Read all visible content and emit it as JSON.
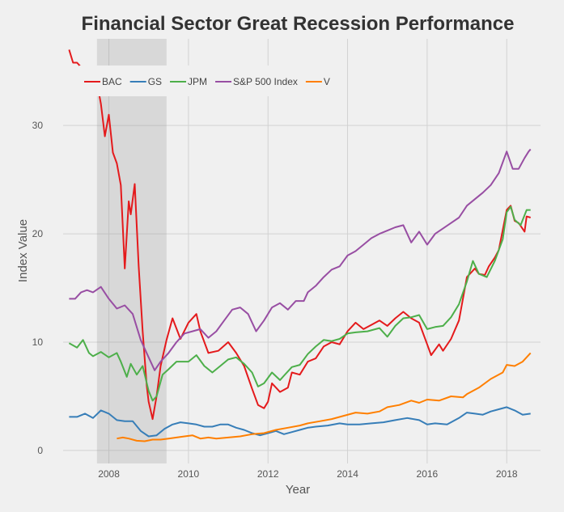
{
  "chart_data": {
    "type": "line",
    "title": "Financial Sector Great Recession Performance",
    "xlabel": "Year",
    "ylabel": "Index Value",
    "xlim": [
      2006.85,
      2018.85
    ],
    "ylim": [
      -1.2,
      38
    ],
    "x_ticks": [
      2008,
      2010,
      2012,
      2014,
      2016,
      2018
    ],
    "y_ticks": [
      0,
      10,
      20,
      30
    ],
    "grid": true,
    "legend_position": "top-left",
    "recession_band": [
      2007.7,
      2009.45
    ],
    "series": [
      {
        "name": "BAC",
        "color": "#e41a1c",
        "points": [
          [
            2007.0,
            37.0
          ],
          [
            2007.1,
            35.8
          ],
          [
            2007.2,
            35.8
          ],
          [
            2007.4,
            35.0
          ],
          [
            2007.5,
            33.3
          ],
          [
            2007.6,
            34.5
          ],
          [
            2007.7,
            34.0
          ],
          [
            2007.8,
            32.0
          ],
          [
            2007.9,
            29.0
          ],
          [
            2008.0,
            31.0
          ],
          [
            2008.1,
            27.5
          ],
          [
            2008.2,
            26.5
          ],
          [
            2008.3,
            24.5
          ],
          [
            2008.4,
            16.8
          ],
          [
            2008.5,
            23.0
          ],
          [
            2008.55,
            21.8
          ],
          [
            2008.65,
            24.6
          ],
          [
            2008.75,
            17.0
          ],
          [
            2008.85,
            11.0
          ],
          [
            2008.95,
            6.0
          ],
          [
            2009.0,
            4.5
          ],
          [
            2009.1,
            2.9
          ],
          [
            2009.2,
            5.0
          ],
          [
            2009.3,
            7.8
          ],
          [
            2009.45,
            10.2
          ],
          [
            2009.6,
            12.2
          ],
          [
            2009.8,
            10.3
          ],
          [
            2010.0,
            11.8
          ],
          [
            2010.2,
            12.6
          ],
          [
            2010.3,
            11.0
          ],
          [
            2010.5,
            9.0
          ],
          [
            2010.75,
            9.2
          ],
          [
            2011.0,
            10.0
          ],
          [
            2011.2,
            9.0
          ],
          [
            2011.4,
            7.8
          ],
          [
            2011.6,
            5.7
          ],
          [
            2011.75,
            4.2
          ],
          [
            2011.9,
            3.9
          ],
          [
            2012.0,
            4.5
          ],
          [
            2012.1,
            6.2
          ],
          [
            2012.3,
            5.4
          ],
          [
            2012.5,
            5.8
          ],
          [
            2012.6,
            7.2
          ],
          [
            2012.8,
            7.0
          ],
          [
            2013.0,
            8.2
          ],
          [
            2013.2,
            8.5
          ],
          [
            2013.4,
            9.6
          ],
          [
            2013.6,
            10.0
          ],
          [
            2013.8,
            9.8
          ],
          [
            2014.0,
            11.0
          ],
          [
            2014.2,
            11.8
          ],
          [
            2014.4,
            11.2
          ],
          [
            2014.6,
            11.6
          ],
          [
            2014.8,
            12.0
          ],
          [
            2015.0,
            11.5
          ],
          [
            2015.2,
            12.2
          ],
          [
            2015.4,
            12.8
          ],
          [
            2015.6,
            12.2
          ],
          [
            2015.8,
            11.8
          ],
          [
            2016.0,
            9.8
          ],
          [
            2016.1,
            8.8
          ],
          [
            2016.3,
            9.8
          ],
          [
            2016.4,
            9.2
          ],
          [
            2016.6,
            10.3
          ],
          [
            2016.8,
            12.0
          ],
          [
            2016.9,
            14.0
          ],
          [
            2017.0,
            16.0
          ],
          [
            2017.2,
            16.8
          ],
          [
            2017.3,
            16.3
          ],
          [
            2017.45,
            16.2
          ],
          [
            2017.55,
            17.0
          ],
          [
            2017.7,
            17.8
          ],
          [
            2017.8,
            18.5
          ],
          [
            2018.0,
            22.2
          ],
          [
            2018.1,
            22.6
          ],
          [
            2018.2,
            21.2
          ],
          [
            2018.3,
            21.0
          ],
          [
            2018.45,
            20.2
          ],
          [
            2018.5,
            21.6
          ],
          [
            2018.6,
            21.5
          ]
        ]
      },
      {
        "name": "GS",
        "color": "#377eb8",
        "points": [
          [
            2007.0,
            3.1
          ],
          [
            2007.2,
            3.1
          ],
          [
            2007.4,
            3.4
          ],
          [
            2007.6,
            3.0
          ],
          [
            2007.8,
            3.7
          ],
          [
            2008.0,
            3.4
          ],
          [
            2008.2,
            2.8
          ],
          [
            2008.4,
            2.7
          ],
          [
            2008.6,
            2.7
          ],
          [
            2008.8,
            1.8
          ],
          [
            2009.0,
            1.3
          ],
          [
            2009.2,
            1.4
          ],
          [
            2009.4,
            2.0
          ],
          [
            2009.6,
            2.4
          ],
          [
            2009.8,
            2.6
          ],
          [
            2010.0,
            2.5
          ],
          [
            2010.2,
            2.4
          ],
          [
            2010.4,
            2.2
          ],
          [
            2010.6,
            2.2
          ],
          [
            2010.8,
            2.4
          ],
          [
            2011.0,
            2.4
          ],
          [
            2011.2,
            2.1
          ],
          [
            2011.4,
            1.9
          ],
          [
            2011.6,
            1.6
          ],
          [
            2011.8,
            1.4
          ],
          [
            2012.0,
            1.6
          ],
          [
            2012.2,
            1.8
          ],
          [
            2012.4,
            1.5
          ],
          [
            2012.6,
            1.7
          ],
          [
            2012.8,
            1.9
          ],
          [
            2013.0,
            2.1
          ],
          [
            2013.2,
            2.2
          ],
          [
            2013.5,
            2.3
          ],
          [
            2013.8,
            2.5
          ],
          [
            2014.0,
            2.4
          ],
          [
            2014.3,
            2.4
          ],
          [
            2014.6,
            2.5
          ],
          [
            2014.9,
            2.6
          ],
          [
            2015.2,
            2.8
          ],
          [
            2015.5,
            3.0
          ],
          [
            2015.8,
            2.8
          ],
          [
            2016.0,
            2.4
          ],
          [
            2016.2,
            2.5
          ],
          [
            2016.5,
            2.4
          ],
          [
            2016.8,
            3.0
          ],
          [
            2017.0,
            3.5
          ],
          [
            2017.2,
            3.4
          ],
          [
            2017.4,
            3.3
          ],
          [
            2017.6,
            3.6
          ],
          [
            2017.8,
            3.8
          ],
          [
            2018.0,
            4.0
          ],
          [
            2018.2,
            3.7
          ],
          [
            2018.4,
            3.3
          ],
          [
            2018.6,
            3.4
          ]
        ]
      },
      {
        "name": "JPM",
        "color": "#4daf4a",
        "points": [
          [
            2007.0,
            9.9
          ],
          [
            2007.2,
            9.5
          ],
          [
            2007.35,
            10.2
          ],
          [
            2007.5,
            9.0
          ],
          [
            2007.6,
            8.7
          ],
          [
            2007.8,
            9.1
          ],
          [
            2008.0,
            8.6
          ],
          [
            2008.2,
            9.0
          ],
          [
            2008.3,
            8.2
          ],
          [
            2008.45,
            6.8
          ],
          [
            2008.55,
            8.0
          ],
          [
            2008.7,
            7.0
          ],
          [
            2008.85,
            7.8
          ],
          [
            2009.0,
            5.5
          ],
          [
            2009.1,
            4.6
          ],
          [
            2009.2,
            5.0
          ],
          [
            2009.35,
            7.0
          ],
          [
            2009.5,
            7.5
          ],
          [
            2009.7,
            8.2
          ],
          [
            2010.0,
            8.2
          ],
          [
            2010.2,
            8.8
          ],
          [
            2010.4,
            7.8
          ],
          [
            2010.6,
            7.2
          ],
          [
            2010.8,
            7.8
          ],
          [
            2011.0,
            8.4
          ],
          [
            2011.2,
            8.6
          ],
          [
            2011.4,
            8.0
          ],
          [
            2011.6,
            7.2
          ],
          [
            2011.75,
            5.9
          ],
          [
            2011.9,
            6.2
          ],
          [
            2012.1,
            7.2
          ],
          [
            2012.3,
            6.5
          ],
          [
            2012.4,
            6.9
          ],
          [
            2012.6,
            7.7
          ],
          [
            2012.8,
            7.9
          ],
          [
            2013.0,
            8.9
          ],
          [
            2013.2,
            9.6
          ],
          [
            2013.4,
            10.2
          ],
          [
            2013.6,
            10.1
          ],
          [
            2013.8,
            10.3
          ],
          [
            2014.0,
            10.8
          ],
          [
            2014.2,
            10.9
          ],
          [
            2014.5,
            11.0
          ],
          [
            2014.8,
            11.3
          ],
          [
            2015.0,
            10.5
          ],
          [
            2015.2,
            11.5
          ],
          [
            2015.4,
            12.2
          ],
          [
            2015.6,
            12.3
          ],
          [
            2015.8,
            12.5
          ],
          [
            2016.0,
            11.2
          ],
          [
            2016.2,
            11.4
          ],
          [
            2016.4,
            11.5
          ],
          [
            2016.6,
            12.3
          ],
          [
            2016.8,
            13.5
          ],
          [
            2017.0,
            15.6
          ],
          [
            2017.15,
            17.5
          ],
          [
            2017.3,
            16.3
          ],
          [
            2017.5,
            16.0
          ],
          [
            2017.7,
            17.5
          ],
          [
            2017.9,
            19.5
          ],
          [
            2018.0,
            22.0
          ],
          [
            2018.1,
            22.5
          ],
          [
            2018.2,
            21.3
          ],
          [
            2018.35,
            20.8
          ],
          [
            2018.5,
            22.2
          ],
          [
            2018.6,
            22.2
          ]
        ]
      },
      {
        "name": "S&P 500 Index",
        "color": "#984ea3",
        "points": [
          [
            2007.0,
            14.0
          ],
          [
            2007.15,
            14.0
          ],
          [
            2007.3,
            14.6
          ],
          [
            2007.45,
            14.8
          ],
          [
            2007.6,
            14.6
          ],
          [
            2007.8,
            15.1
          ],
          [
            2008.0,
            14.0
          ],
          [
            2008.2,
            13.1
          ],
          [
            2008.4,
            13.4
          ],
          [
            2008.6,
            12.6
          ],
          [
            2008.8,
            10.2
          ],
          [
            2009.0,
            8.6
          ],
          [
            2009.15,
            7.4
          ],
          [
            2009.3,
            8.2
          ],
          [
            2009.5,
            9.0
          ],
          [
            2009.7,
            10.0
          ],
          [
            2009.9,
            10.8
          ],
          [
            2010.1,
            11.0
          ],
          [
            2010.3,
            11.2
          ],
          [
            2010.5,
            10.4
          ],
          [
            2010.7,
            11.0
          ],
          [
            2010.9,
            12.0
          ],
          [
            2011.1,
            13.0
          ],
          [
            2011.3,
            13.2
          ],
          [
            2011.5,
            12.6
          ],
          [
            2011.7,
            11.0
          ],
          [
            2011.9,
            12.0
          ],
          [
            2012.1,
            13.2
          ],
          [
            2012.3,
            13.6
          ],
          [
            2012.5,
            13.0
          ],
          [
            2012.7,
            13.8
          ],
          [
            2012.9,
            13.8
          ],
          [
            2013.0,
            14.6
          ],
          [
            2013.2,
            15.2
          ],
          [
            2013.4,
            16.0
          ],
          [
            2013.6,
            16.7
          ],
          [
            2013.8,
            17.0
          ],
          [
            2014.0,
            18.0
          ],
          [
            2014.2,
            18.4
          ],
          [
            2014.4,
            19.0
          ],
          [
            2014.6,
            19.6
          ],
          [
            2014.8,
            20.0
          ],
          [
            2015.0,
            20.3
          ],
          [
            2015.2,
            20.6
          ],
          [
            2015.4,
            20.8
          ],
          [
            2015.6,
            19.2
          ],
          [
            2015.8,
            20.2
          ],
          [
            2016.0,
            19.0
          ],
          [
            2016.2,
            20.0
          ],
          [
            2016.4,
            20.5
          ],
          [
            2016.6,
            21.0
          ],
          [
            2016.8,
            21.5
          ],
          [
            2017.0,
            22.6
          ],
          [
            2017.2,
            23.2
          ],
          [
            2017.4,
            23.8
          ],
          [
            2017.6,
            24.5
          ],
          [
            2017.8,
            25.6
          ],
          [
            2018.0,
            27.6
          ],
          [
            2018.15,
            26.0
          ],
          [
            2018.3,
            26.0
          ],
          [
            2018.45,
            27.0
          ],
          [
            2018.55,
            27.6
          ],
          [
            2018.6,
            27.8
          ]
        ]
      },
      {
        "name": "V",
        "color": "#ff7f00",
        "points": [
          [
            2008.2,
            1.1
          ],
          [
            2008.35,
            1.2
          ],
          [
            2008.5,
            1.1
          ],
          [
            2008.7,
            0.9
          ],
          [
            2008.9,
            0.85
          ],
          [
            2009.1,
            1.0
          ],
          [
            2009.3,
            1.0
          ],
          [
            2009.5,
            1.1
          ],
          [
            2009.7,
            1.2
          ],
          [
            2009.9,
            1.3
          ],
          [
            2010.1,
            1.4
          ],
          [
            2010.3,
            1.1
          ],
          [
            2010.5,
            1.2
          ],
          [
            2010.7,
            1.1
          ],
          [
            2011.0,
            1.2
          ],
          [
            2011.3,
            1.3
          ],
          [
            2011.6,
            1.5
          ],
          [
            2011.9,
            1.6
          ],
          [
            2012.2,
            1.9
          ],
          [
            2012.5,
            2.1
          ],
          [
            2012.8,
            2.3
          ],
          [
            2013.0,
            2.5
          ],
          [
            2013.3,
            2.7
          ],
          [
            2013.6,
            2.9
          ],
          [
            2013.9,
            3.2
          ],
          [
            2014.2,
            3.5
          ],
          [
            2014.5,
            3.4
          ],
          [
            2014.8,
            3.6
          ],
          [
            2015.0,
            4.0
          ],
          [
            2015.3,
            4.2
          ],
          [
            2015.6,
            4.6
          ],
          [
            2015.8,
            4.4
          ],
          [
            2016.0,
            4.7
          ],
          [
            2016.3,
            4.6
          ],
          [
            2016.6,
            5.0
          ],
          [
            2016.9,
            4.9
          ],
          [
            2017.0,
            5.2
          ],
          [
            2017.3,
            5.8
          ],
          [
            2017.6,
            6.6
          ],
          [
            2017.9,
            7.2
          ],
          [
            2018.0,
            7.9
          ],
          [
            2018.2,
            7.8
          ],
          [
            2018.4,
            8.2
          ],
          [
            2018.6,
            9.0
          ]
        ]
      }
    ]
  }
}
